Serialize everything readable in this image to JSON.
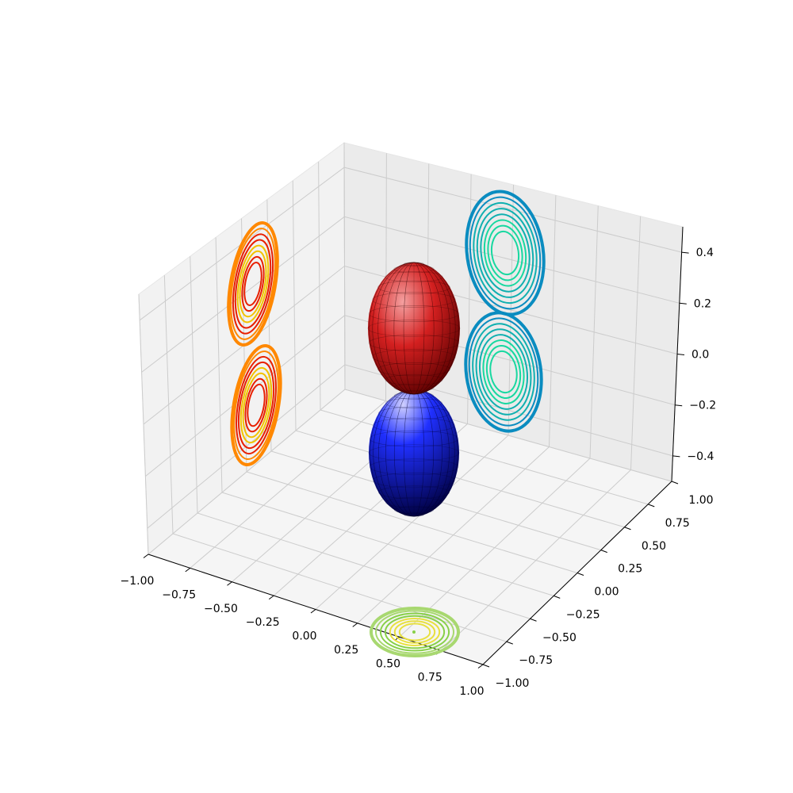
{
  "chart_data": {
    "type": "3d-surface-with-contour-projections",
    "title": "",
    "xlabel": "",
    "ylabel": "",
    "zlabel": "",
    "xlim": [
      -1.0,
      1.0
    ],
    "ylim": [
      -1.0,
      1.0
    ],
    "zlim": [
      -0.5,
      0.5
    ],
    "grid": true,
    "x_ticks": [
      "−1.00",
      "−0.75",
      "−0.50",
      "−0.25",
      "0.00",
      "0.25",
      "0.50",
      "0.75",
      "1.00"
    ],
    "y_ticks": [
      "−1.00",
      "−0.75",
      "−0.50",
      "−0.25",
      "0.00",
      "0.25",
      "0.50",
      "0.75",
      "1.00"
    ],
    "z_ticks": [
      "−0.4",
      "−0.2",
      "0.0",
      "0.2",
      "0.4"
    ],
    "surfaces": [
      {
        "shape": "ellipsoid",
        "center": [
          0.5,
          0.5,
          0.25
        ],
        "semi_axes": [
          0.15,
          0.15,
          0.25
        ],
        "colormap": "Reds",
        "color": "#b01010"
      },
      {
        "shape": "ellipsoid",
        "center": [
          0.5,
          0.5,
          -0.25
        ],
        "semi_axes": [
          0.15,
          0.15,
          0.25
        ],
        "colormap": "Blues",
        "color": "#1010a0"
      }
    ],
    "contour_projections": [
      {
        "plane": "x = -1",
        "colors": [
          "#e82000",
          "#f2c200",
          "#ff8800"
        ]
      },
      {
        "plane": "y = 1",
        "colors": [
          "#18d8a0",
          "#10b0b0",
          "#0a8cc0"
        ]
      },
      {
        "plane": "z = -0.5",
        "colors": [
          "#e8e040",
          "#88d048",
          "#a8d870"
        ]
      }
    ]
  }
}
